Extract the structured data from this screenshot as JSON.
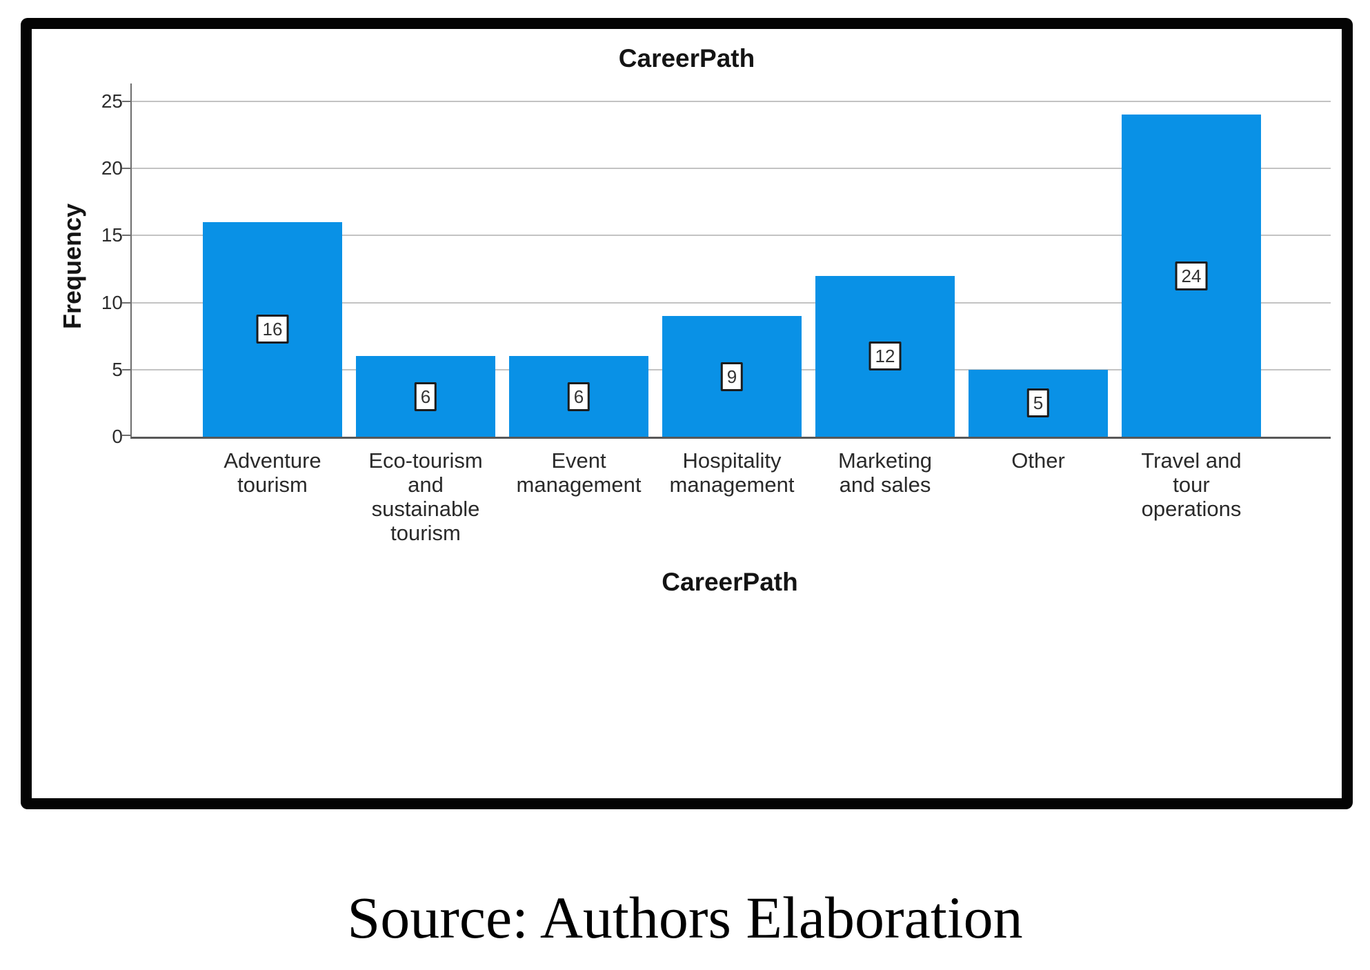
{
  "figure": {
    "caption": "Source: Authors Elaboration"
  },
  "chart_data": {
    "type": "bar",
    "title": "CareerPath",
    "xlabel": "CareerPath",
    "ylabel": "Frequency",
    "categories": [
      "Adventure tourism",
      "Eco-tourism and sustainable tourism",
      "Event management",
      "Hospitality management",
      "Marketing and sales",
      "Other",
      "Travel and tour operations"
    ],
    "values": [
      16,
      6,
      6,
      9,
      12,
      5,
      24
    ],
    "ylim": [
      0,
      25
    ],
    "yticks": [
      0,
      5,
      10,
      15,
      20,
      25
    ],
    "grid": "horizontal",
    "legend": "none",
    "data_labels": "value shown in white boxed label centered inside each bar",
    "colors": {
      "bar": "#0991e6",
      "gridline": "#c3c3c3",
      "axis": "#6e6e6e",
      "label_box_border": "#1c1c1c",
      "frame": "#040404",
      "text": "#141414"
    }
  }
}
